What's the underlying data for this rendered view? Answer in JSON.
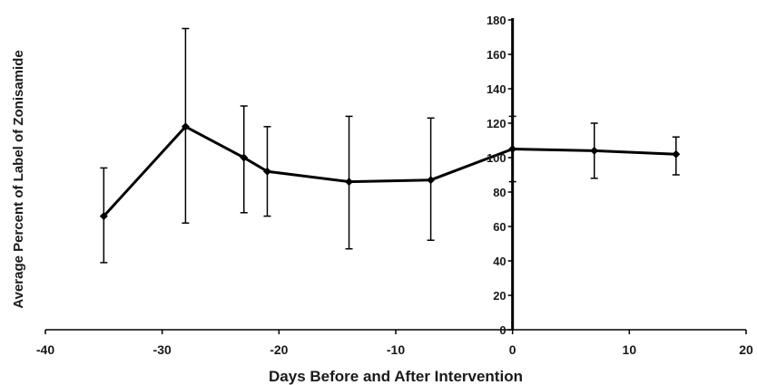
{
  "chart_data": {
    "type": "line",
    "title": "",
    "xlabel": "Days Before and After Intervention",
    "ylabel": "Average Percent of Label of Zonisamide",
    "xlim": [
      -40,
      20
    ],
    "ylim": [
      0,
      180
    ],
    "x_ticks": [
      -40,
      -30,
      -20,
      -10,
      0,
      10,
      20
    ],
    "y_ticks": [
      0,
      20,
      40,
      60,
      80,
      100,
      120,
      140,
      160,
      180
    ],
    "grid": false,
    "legend": "none",
    "y_axis_position": "x=0",
    "series": [
      {
        "color": "#000000",
        "marker": "diamond",
        "error_bars": true,
        "points": [
          {
            "x": -35,
            "y": 66,
            "err_low": 39,
            "err_high": 94
          },
          {
            "x": -28,
            "y": 118,
            "err_low": 62,
            "err_high": 175
          },
          {
            "x": -23,
            "y": 100,
            "err_low": 68,
            "err_high": 130
          },
          {
            "x": -21,
            "y": 92,
            "err_low": 66,
            "err_high": 118
          },
          {
            "x": -14,
            "y": 86,
            "err_low": 47,
            "err_high": 124
          },
          {
            "x": -7,
            "y": 87,
            "err_low": 52,
            "err_high": 123
          },
          {
            "x": 0,
            "y": 105,
            "err_low": 86,
            "err_high": 124
          },
          {
            "x": 7,
            "y": 104,
            "err_low": 88,
            "err_high": 120
          },
          {
            "x": 14,
            "y": 102,
            "err_low": 90,
            "err_high": 112
          }
        ]
      }
    ]
  }
}
